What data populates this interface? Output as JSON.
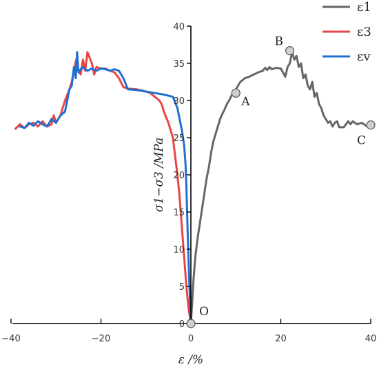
{
  "chart_data": {
    "type": "line",
    "title": "",
    "xlabel": "ε /%",
    "ylabel": "σ1−σ3 /MPa",
    "xlim": [
      -40,
      40
    ],
    "ylim": [
      0,
      40
    ],
    "x_ticks": [
      "−40",
      "−20",
      "0",
      "20",
      "40"
    ],
    "y_ticks": [
      "0",
      "5",
      "10",
      "15",
      "20",
      "25",
      "30",
      "35",
      "40"
    ],
    "grid": false,
    "legend_position": "top-right",
    "series": [
      {
        "name": "ε1",
        "color": "#666666",
        "x": [
          0,
          0.3,
          0.6,
          1.0,
          1.5,
          2.0,
          2.5,
          3.0,
          3.5,
          4.0,
          4.5,
          5.0,
          5.5,
          6.0,
          6.5,
          7.0,
          7.5,
          8.0,
          8.5,
          9.0,
          9.5,
          10.0,
          10.5,
          11.0,
          12.0,
          13.0,
          14.0,
          15.0,
          16.0,
          16.5,
          17.0,
          17.5,
          18.0,
          19.0,
          20.0,
          21.0,
          21.5,
          22.0,
          22.5,
          23.0,
          23.5,
          24.0,
          24.5,
          25.0,
          25.5,
          26.0,
          26.5,
          27.0,
          27.5,
          28.0,
          28.5,
          29.0,
          29.5,
          30.0,
          30.5,
          31.0,
          31.5,
          32.0,
          32.5,
          33.0,
          34.0,
          35.0,
          35.5,
          36.0,
          37.0,
          38.0,
          39.0,
          40.0
        ],
        "y": [
          0,
          3.0,
          6.0,
          9.0,
          11.5,
          13.5,
          15.5,
          17.5,
          19.5,
          21.0,
          23.0,
          24.5,
          25.5,
          26.5,
          27.5,
          28.2,
          28.8,
          29.5,
          30.0,
          30.6,
          31.0,
          31.5,
          32.0,
          32.5,
          33.0,
          33.2,
          33.5,
          33.8,
          34.0,
          34.4,
          34.1,
          34.5,
          34.2,
          34.4,
          34.3,
          33.2,
          34.5,
          35.0,
          36.5,
          35.5,
          36.0,
          34.5,
          35.0,
          33.0,
          33.5,
          32.0,
          31.5,
          32.5,
          30.5,
          31.0,
          29.5,
          29.0,
          28.0,
          27.5,
          27.0,
          27.2,
          26.5,
          27.0,
          27.2,
          26.4,
          26.4,
          27.2,
          26.8,
          27.2,
          26.8,
          27.0,
          26.6,
          26.7
        ]
      },
      {
        "name": "ε3",
        "color": "#e84545",
        "x": [
          0,
          -0.5,
          -1.0,
          -1.5,
          -2.0,
          -2.5,
          -3.0,
          -3.5,
          -4.0,
          -5.0,
          -6.0,
          -6.5,
          -7.0,
          -8.0,
          -9.0,
          -10.0,
          -12.0,
          -14.0,
          -15.0,
          -16.0,
          -17.0,
          -18.0,
          -19.0,
          -20.0,
          -21.0,
          -21.5,
          -22.0,
          -23.0,
          -23.5,
          -24.0,
          -24.5,
          -25.0,
          -25.5,
          -26.0,
          -26.5,
          -27.0,
          -28.0,
          -29.0,
          -30.0,
          -30.5,
          -31.0,
          -32.0,
          -33.0,
          -34.0,
          -35.0,
          -36.0,
          -37.0,
          -38.0,
          -39.0
        ],
        "y": [
          0,
          2.0,
          5.0,
          9.0,
          13.0,
          17.0,
          20.0,
          22.5,
          25.0,
          27.0,
          28.5,
          29.5,
          30.0,
          30.5,
          31.0,
          31.2,
          31.5,
          31.6,
          31.8,
          33.0,
          33.8,
          34.0,
          34.3,
          34.3,
          34.5,
          33.5,
          35.0,
          36.5,
          34.0,
          35.5,
          33.5,
          34.0,
          35.5,
          34.0,
          32.5,
          31.5,
          30.0,
          28.0,
          27.0,
          28.0,
          26.8,
          26.5,
          27.2,
          26.5,
          27.0,
          26.8,
          26.3,
          26.8,
          26.2
        ]
      },
      {
        "name": "εv",
        "color": "#1f6fd1",
        "x": [
          0,
          -0.2,
          -0.4,
          -0.6,
          -0.8,
          -1.0,
          -1.2,
          -1.5,
          -2.0,
          -2.5,
          -3.0,
          -4.0,
          -6.0,
          -8.0,
          -10.0,
          -12.0,
          -14.0,
          -15.0,
          -16.0,
          -17.0,
          -18.0,
          -19.0,
          -20.0,
          -21.0,
          -22.0,
          -23.0,
          -24.0,
          -24.5,
          -25.0,
          -25.3,
          -25.6,
          -26.0,
          -26.5,
          -27.0,
          -27.5,
          -28.0,
          -29.0,
          -30.0,
          -31.0,
          -32.0,
          -33.0,
          -34.0,
          -35.0,
          -36.0,
          -37.0,
          -38.0
        ],
        "y": [
          0,
          3.0,
          6.5,
          10.0,
          14.0,
          18.5,
          21.5,
          24.0,
          26.0,
          27.5,
          29.0,
          30.5,
          30.8,
          31.0,
          31.2,
          31.4,
          31.5,
          33.0,
          34.0,
          34.2,
          34.0,
          34.2,
          34.3,
          34.0,
          34.3,
          34.0,
          34.5,
          34.2,
          33.8,
          36.5,
          33.0,
          34.5,
          32.0,
          31.5,
          30.0,
          28.5,
          28.0,
          27.0,
          27.5,
          26.5,
          26.8,
          27.2,
          26.6,
          27.0,
          26.3,
          26.5
        ]
      }
    ],
    "annotations": [
      {
        "label": "O",
        "x": 0,
        "y": 0
      },
      {
        "label": "A",
        "x": 10,
        "y": 31
      },
      {
        "label": "B",
        "x": 22,
        "y": 36.7
      },
      {
        "label": "C",
        "x": 40,
        "y": 26.7
      }
    ]
  }
}
